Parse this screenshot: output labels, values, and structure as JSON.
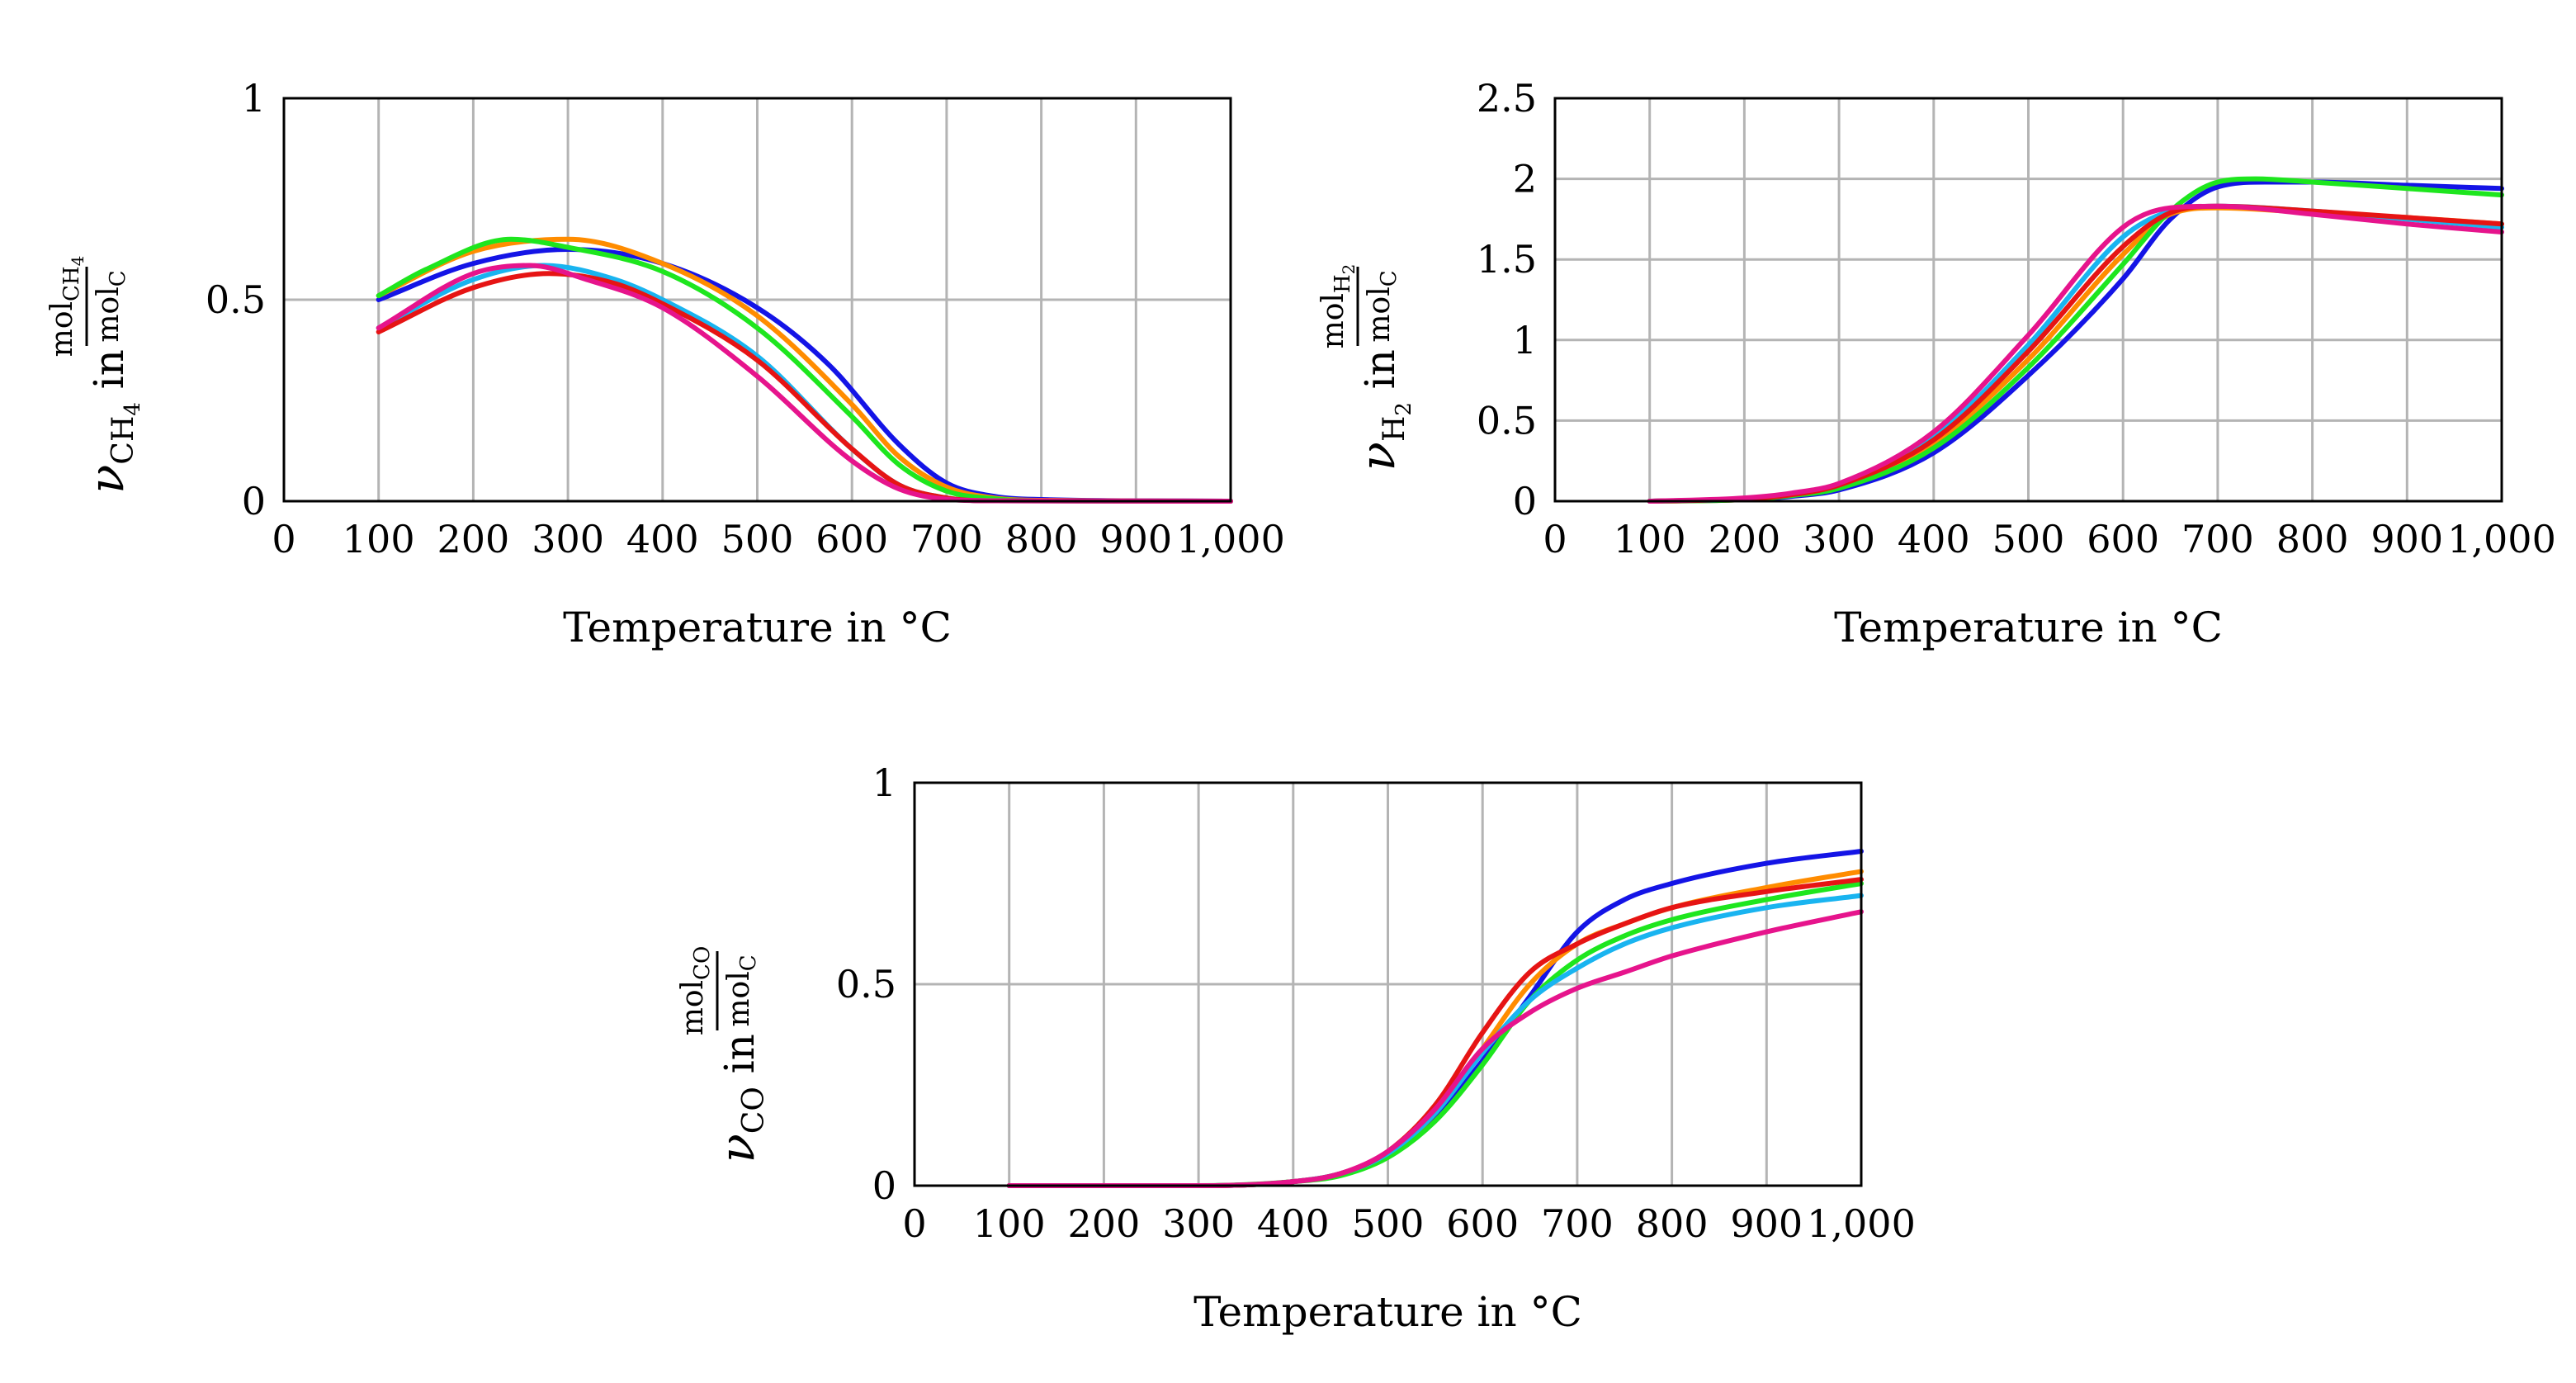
{
  "chart_data": [
    {
      "id": "ch4",
      "type": "line",
      "title": "",
      "xlabel": "Temperature in °C",
      "ylabel": "ν_CH4 in mol_CH4 / mol_C",
      "ylabel_parts": {
        "symbol": "ν",
        "sub": "CH",
        "sub2": "4",
        "in": "in",
        "num": "mol",
        "num_sub": "CH",
        "num_sub2": "4",
        "den": "mol",
        "den_sub": "C"
      },
      "xlim": [
        0,
        1000
      ],
      "ylim": [
        0,
        1
      ],
      "x_ticks": [
        "0",
        "100",
        "200",
        "300",
        "400",
        "500",
        "600",
        "700",
        "800",
        "900",
        "1,000"
      ],
      "x_tick_values": [
        0,
        100,
        200,
        300,
        400,
        500,
        600,
        700,
        800,
        900,
        1000
      ],
      "y_ticks": [
        "0",
        "0.5",
        "1"
      ],
      "y_tick_values": [
        0,
        0.5,
        1
      ],
      "grid": true,
      "series": [
        {
          "name": "blue",
          "color": "#1414e6",
          "x": [
            100,
            200,
            300,
            400,
            500,
            575,
            650,
            700,
            750,
            800,
            1000
          ],
          "y": [
            0.5,
            0.59,
            0.625,
            0.59,
            0.48,
            0.34,
            0.14,
            0.045,
            0.012,
            0.004,
            0.0
          ]
        },
        {
          "name": "orange",
          "color": "#ff8c00",
          "x": [
            100,
            200,
            300,
            400,
            500,
            600,
            650,
            700,
            750,
            800,
            1000
          ],
          "y": [
            0.51,
            0.62,
            0.65,
            0.59,
            0.46,
            0.24,
            0.11,
            0.035,
            0.008,
            0.002,
            0.0
          ]
        },
        {
          "name": "green",
          "color": "#1ee61e",
          "x": [
            100,
            150,
            240,
            300,
            400,
            500,
            600,
            650,
            700,
            750,
            800,
            1000
          ],
          "y": [
            0.51,
            0.575,
            0.65,
            0.63,
            0.57,
            0.43,
            0.21,
            0.09,
            0.025,
            0.006,
            0.001,
            0.0
          ]
        },
        {
          "name": "cyan",
          "color": "#19b4f0",
          "x": [
            100,
            200,
            275,
            350,
            400,
            500,
            600,
            650,
            700,
            750,
            1000
          ],
          "y": [
            0.43,
            0.55,
            0.585,
            0.55,
            0.5,
            0.36,
            0.13,
            0.04,
            0.008,
            0.001,
            0.0
          ]
        },
        {
          "name": "red",
          "color": "#e61414",
          "x": [
            100,
            200,
            280,
            350,
            400,
            500,
            600,
            650,
            700,
            750,
            1000
          ],
          "y": [
            0.42,
            0.53,
            0.565,
            0.54,
            0.49,
            0.35,
            0.13,
            0.04,
            0.008,
            0.001,
            0.0
          ]
        },
        {
          "name": "magenta",
          "color": "#e6148c",
          "x": [
            100,
            200,
            260,
            320,
            400,
            500,
            600,
            650,
            700,
            750,
            1000
          ],
          "y": [
            0.43,
            0.565,
            0.585,
            0.55,
            0.48,
            0.31,
            0.1,
            0.03,
            0.005,
            0.001,
            0.0
          ]
        }
      ]
    },
    {
      "id": "h2",
      "type": "line",
      "title": "",
      "xlabel": "Temperature in °C",
      "ylabel": "ν_H2 in mol_H2 / mol_C",
      "ylabel_parts": {
        "symbol": "ν",
        "sub": "H",
        "sub2": "2",
        "in": "in",
        "num": "mol",
        "num_sub": "H",
        "num_sub2": "2",
        "den": "mol",
        "den_sub": "C"
      },
      "xlim": [
        0,
        1000
      ],
      "ylim": [
        0,
        2.5
      ],
      "x_ticks": [
        "0",
        "100",
        "200",
        "300",
        "400",
        "500",
        "600",
        "700",
        "800",
        "900",
        "1,000"
      ],
      "x_tick_values": [
        0,
        100,
        200,
        300,
        400,
        500,
        600,
        700,
        800,
        900,
        1000
      ],
      "y_ticks": [
        "0",
        "0.5",
        "1",
        "1.5",
        "2",
        "2.5"
      ],
      "y_tick_values": [
        0,
        0.5,
        1,
        1.5,
        2,
        2.5
      ],
      "grid": true,
      "series": [
        {
          "name": "blue",
          "color": "#1414e6",
          "x": [
            100,
            200,
            250,
            300,
            400,
            500,
            600,
            650,
            700,
            750,
            800,
            900,
            1000
          ],
          "y": [
            0.0,
            0.01,
            0.03,
            0.07,
            0.3,
            0.78,
            1.38,
            1.75,
            1.95,
            1.98,
            1.98,
            1.96,
            1.94
          ]
        },
        {
          "name": "orange",
          "color": "#ff8c00",
          "x": [
            100,
            200,
            250,
            300,
            400,
            500,
            600,
            650,
            700,
            800,
            900,
            1000
          ],
          "y": [
            0.0,
            0.01,
            0.04,
            0.09,
            0.36,
            0.88,
            1.53,
            1.78,
            1.82,
            1.79,
            1.76,
            1.72
          ]
        },
        {
          "name": "green",
          "color": "#1ee61e",
          "x": [
            100,
            200,
            250,
            300,
            400,
            500,
            600,
            650,
            700,
            740,
            800,
            900,
            1000
          ],
          "y": [
            0.0,
            0.01,
            0.035,
            0.08,
            0.33,
            0.83,
            1.47,
            1.8,
            1.98,
            2.0,
            1.98,
            1.94,
            1.9
          ]
        },
        {
          "name": "cyan",
          "color": "#19b4f0",
          "x": [
            100,
            200,
            250,
            300,
            400,
            500,
            600,
            650,
            700,
            800,
            900,
            1000
          ],
          "y": [
            0.0,
            0.015,
            0.045,
            0.1,
            0.4,
            0.97,
            1.64,
            1.8,
            1.83,
            1.8,
            1.75,
            1.7
          ]
        },
        {
          "name": "red",
          "color": "#e61414",
          "x": [
            100,
            200,
            250,
            300,
            400,
            500,
            600,
            650,
            700,
            800,
            900,
            1000
          ],
          "y": [
            0.0,
            0.015,
            0.04,
            0.1,
            0.38,
            0.93,
            1.58,
            1.79,
            1.83,
            1.8,
            1.76,
            1.72
          ]
        },
        {
          "name": "magenta",
          "color": "#e6148c",
          "x": [
            100,
            200,
            250,
            300,
            400,
            500,
            600,
            650,
            700,
            800,
            900,
            1000
          ],
          "y": [
            0.0,
            0.02,
            0.05,
            0.11,
            0.43,
            1.03,
            1.7,
            1.82,
            1.83,
            1.78,
            1.72,
            1.67
          ]
        }
      ]
    },
    {
      "id": "co",
      "type": "line",
      "title": "",
      "xlabel": "Temperature in °C",
      "ylabel": "ν_CO in mol_CO / mol_C",
      "ylabel_parts": {
        "symbol": "ν",
        "sub": "CO",
        "sub2": "",
        "in": "in",
        "num": "mol",
        "num_sub": "CO",
        "num_sub2": "",
        "den": "mol",
        "den_sub": "C"
      },
      "xlim": [
        0,
        1000
      ],
      "ylim": [
        0,
        1
      ],
      "x_ticks": [
        "0",
        "100",
        "200",
        "300",
        "400",
        "500",
        "600",
        "700",
        "800",
        "900",
        "1,000"
      ],
      "x_tick_values": [
        0,
        100,
        200,
        300,
        400,
        500,
        600,
        700,
        800,
        900,
        1000
      ],
      "y_ticks": [
        "0",
        "0.5",
        "1"
      ],
      "y_tick_values": [
        0,
        0.5,
        1
      ],
      "grid": true,
      "series": [
        {
          "name": "blue",
          "color": "#1414e6",
          "x": [
            100,
            300,
            400,
            450,
            500,
            550,
            600,
            650,
            700,
            750,
            800,
            900,
            1000
          ],
          "y": [
            0.0,
            0.0,
            0.01,
            0.03,
            0.08,
            0.17,
            0.31,
            0.47,
            0.63,
            0.71,
            0.75,
            0.8,
            0.83
          ]
        },
        {
          "name": "orange",
          "color": "#ff8c00",
          "x": [
            100,
            300,
            400,
            450,
            500,
            550,
            600,
            650,
            700,
            750,
            800,
            900,
            1000
          ],
          "y": [
            0.0,
            0.0,
            0.01,
            0.03,
            0.08,
            0.18,
            0.34,
            0.5,
            0.6,
            0.65,
            0.69,
            0.74,
            0.78
          ]
        },
        {
          "name": "green",
          "color": "#1ee61e",
          "x": [
            100,
            300,
            400,
            450,
            500,
            550,
            600,
            650,
            700,
            750,
            800,
            900,
            1000
          ],
          "y": [
            0.0,
            0.0,
            0.01,
            0.025,
            0.07,
            0.16,
            0.3,
            0.46,
            0.56,
            0.62,
            0.66,
            0.71,
            0.75
          ]
        },
        {
          "name": "cyan",
          "color": "#19b4f0",
          "x": [
            100,
            300,
            400,
            450,
            500,
            550,
            600,
            650,
            700,
            750,
            800,
            900,
            1000
          ],
          "y": [
            0.0,
            0.0,
            0.01,
            0.03,
            0.08,
            0.18,
            0.33,
            0.46,
            0.54,
            0.6,
            0.64,
            0.69,
            0.72
          ]
        },
        {
          "name": "red",
          "color": "#e61414",
          "x": [
            100,
            300,
            400,
            450,
            500,
            550,
            600,
            650,
            700,
            750,
            800,
            900,
            1000
          ],
          "y": [
            0.0,
            0.0,
            0.01,
            0.03,
            0.085,
            0.2,
            0.38,
            0.53,
            0.6,
            0.65,
            0.69,
            0.73,
            0.76
          ]
        },
        {
          "name": "magenta",
          "color": "#e6148c",
          "x": [
            100,
            300,
            400,
            450,
            500,
            550,
            600,
            650,
            700,
            750,
            800,
            900,
            1000
          ],
          "y": [
            0.0,
            0.0,
            0.01,
            0.03,
            0.085,
            0.19,
            0.34,
            0.43,
            0.49,
            0.53,
            0.57,
            0.63,
            0.68
          ]
        }
      ]
    }
  ]
}
